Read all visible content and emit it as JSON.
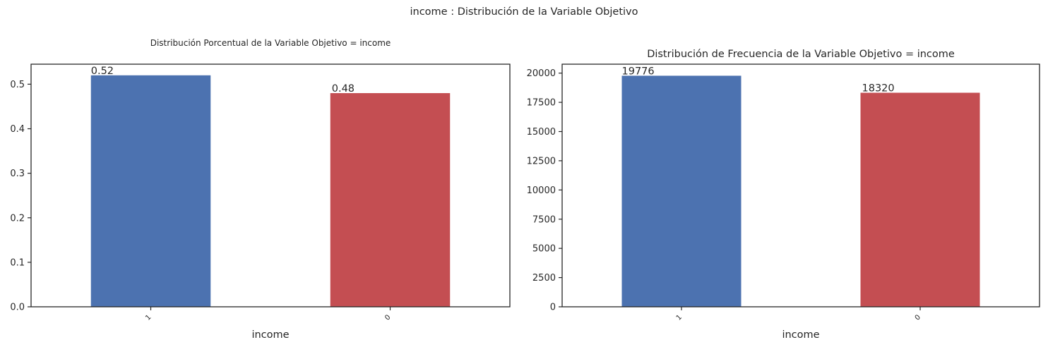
{
  "figure": {
    "suptitle": "income : Distribución de la Variable Objetivo"
  },
  "chart_data": [
    {
      "type": "bar",
      "title": "Distribución Porcentual de la Variable Objetivo = income",
      "xlabel": "income",
      "ylabel": "",
      "categories": [
        "1",
        "0"
      ],
      "values": [
        0.52,
        0.48
      ],
      "data_labels": [
        "0.52",
        "0.48"
      ],
      "colors": [
        "#4c72b0",
        "#c44e52"
      ],
      "ylim": [
        0,
        0.545
      ],
      "yticks": [
        0.0,
        0.1,
        0.2,
        0.3,
        0.4,
        0.5
      ],
      "ytick_labels": [
        "0.0",
        "0.1",
        "0.2",
        "0.3",
        "0.4",
        "0.5"
      ],
      "grid": false,
      "legend": "none"
    },
    {
      "type": "bar",
      "title": "Distribución de Frecuencia de la Variable Objetivo = income",
      "xlabel": "income",
      "ylabel": "",
      "categories": [
        "1",
        "0"
      ],
      "values": [
        19776,
        18320
      ],
      "data_labels": [
        "19776",
        "18320"
      ],
      "colors": [
        "#4c72b0",
        "#c44e52"
      ],
      "ylim": [
        0,
        20765
      ],
      "yticks": [
        0,
        2500,
        5000,
        7500,
        10000,
        12500,
        15000,
        17500,
        20000
      ],
      "ytick_labels": [
        "0",
        "2500",
        "5000",
        "7500",
        "10000",
        "12500",
        "15000",
        "17500",
        "20000"
      ],
      "grid": false,
      "legend": "none"
    }
  ]
}
